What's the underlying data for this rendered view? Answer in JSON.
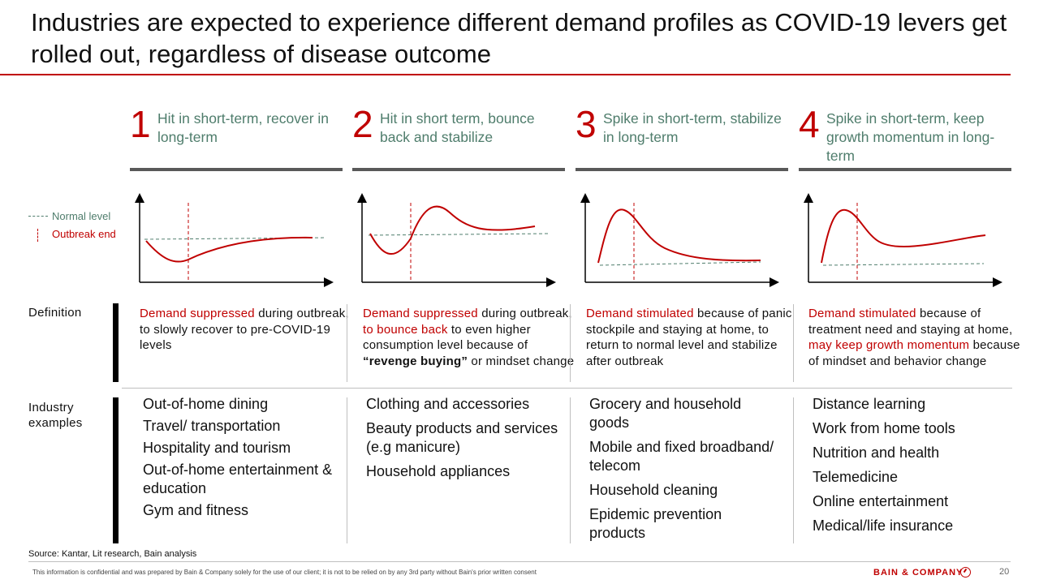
{
  "title": "Industries are expected to experience different demand profiles as COVID-19 levers get rolled out, regardless of disease outcome",
  "legend": {
    "normal": "Normal level",
    "outbreak": "Outbreak end"
  },
  "row_labels": {
    "definition": "Definition",
    "industry": "Industry examples"
  },
  "columns": [
    {
      "number": "1",
      "label": "Hit in short-term, recover in long-term",
      "definition": [
        {
          "t": "Demand suppressed",
          "red": true
        },
        {
          "t": " during outbreak, to slowly recover to pre-COVID-19 levels"
        }
      ],
      "industries": [
        "Out-of-home dining",
        "Travel/ transportation",
        "Hospitality and tourism",
        "Out-of-home entertainment & education",
        "Gym and fitness"
      ]
    },
    {
      "number": "2",
      "label": "Hit in short term, bounce back and stabilize",
      "definition": [
        {
          "t": "Demand suppressed",
          "red": true
        },
        {
          "t": " during outbreak, "
        },
        {
          "t": "to bounce back",
          "red": true
        },
        {
          "t": " to even higher consumption level because of "
        },
        {
          "t": "“revenge buying”",
          "bold": true
        },
        {
          "t": " or mindset change"
        }
      ],
      "industries": [
        "Clothing and accessories",
        "Beauty products and services (e.g manicure)",
        "Household appliances"
      ]
    },
    {
      "number": "3",
      "label": "Spike in short-term, stabilize in long-term",
      "definition": [
        {
          "t": "Demand stimulated",
          "red": true
        },
        {
          "t": " because of panic stockpile and staying at home, to return to normal level and stabilize after outbreak"
        }
      ],
      "industries": [
        "Grocery and household goods",
        "Mobile and fixed broadband/ telecom",
        "Household cleaning",
        "Epidemic prevention products"
      ]
    },
    {
      "number": "4",
      "label": "Spike in short-term, keep growth momentum in long-term",
      "definition": [
        {
          "t": "Demand stimulated",
          "red": true
        },
        {
          "t": " because of treatment need and staying at home, "
        },
        {
          "t": "may keep growth momentum",
          "red": true
        },
        {
          "t": " because of mindset and behavior change"
        }
      ],
      "industries": [
        "Distance learning",
        "Work from home tools",
        "Nutrition and health",
        "Telemedicine",
        "Online entertainment",
        "Medical/life insurance"
      ]
    }
  ],
  "source": "Source: Kantar, Lit research, Bain analysis",
  "disclaimer": "This information is confidential and was prepared by Bain & Company solely for the use of our client; it is not to be relied on by any 3rd party without Bain's prior written consent",
  "brand": "BAIN & COMPANY",
  "page_number": "20",
  "colors": {
    "accent_red": "#c00000",
    "normal_green": "#4f7d6c",
    "bar_gray": "#595959"
  }
}
